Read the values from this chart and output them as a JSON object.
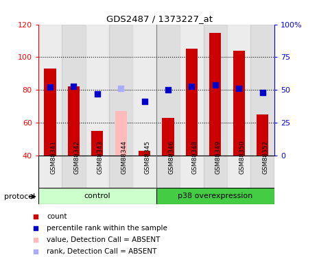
{
  "title": "GDS2487 / 1373227_at",
  "samples": [
    "GSM88341",
    "GSM88342",
    "GSM88343",
    "GSM88344",
    "GSM88345",
    "GSM88346",
    "GSM88348",
    "GSM88349",
    "GSM88350",
    "GSM88352"
  ],
  "bar_values": [
    93,
    82,
    55,
    67,
    43,
    63,
    105,
    115,
    104,
    65
  ],
  "bar_colors": [
    "#cc0000",
    "#cc0000",
    "#cc0000",
    "#ffbbbb",
    "#cc0000",
    "#cc0000",
    "#cc0000",
    "#cc0000",
    "#cc0000",
    "#cc0000"
  ],
  "rank_values": [
    52,
    53,
    47,
    51,
    41,
    50,
    53,
    54,
    51,
    48
  ],
  "rank_colors": [
    "#0000cc",
    "#0000cc",
    "#0000cc",
    "#aaaaff",
    "#0000cc",
    "#0000cc",
    "#0000cc",
    "#0000cc",
    "#0000cc",
    "#0000cc"
  ],
  "ylim_left": [
    40,
    120
  ],
  "ylim_right": [
    0,
    100
  ],
  "yticks_left": [
    40,
    60,
    80,
    100,
    120
  ],
  "yticks_right": [
    0,
    25,
    50,
    75,
    100
  ],
  "ytick_labels_right": [
    "0",
    "25",
    "50",
    "75",
    "100%"
  ],
  "n_control": 5,
  "n_p38": 5,
  "control_label": "control",
  "p38_label": "p38 overexpression",
  "protocol_label": "protocol",
  "legend_items": [
    {
      "label": "count",
      "color": "#cc0000"
    },
    {
      "label": "percentile rank within the sample",
      "color": "#0000cc"
    },
    {
      "label": "value, Detection Call = ABSENT",
      "color": "#ffbbbb"
    },
    {
      "label": "rank, Detection Call = ABSENT",
      "color": "#aaaaff"
    }
  ],
  "col_bg_even": "#e0e0e0",
  "col_bg_odd": "#c8c8c8",
  "control_color": "#ccffcc",
  "p38_color": "#44cc44",
  "bar_width": 0.5
}
